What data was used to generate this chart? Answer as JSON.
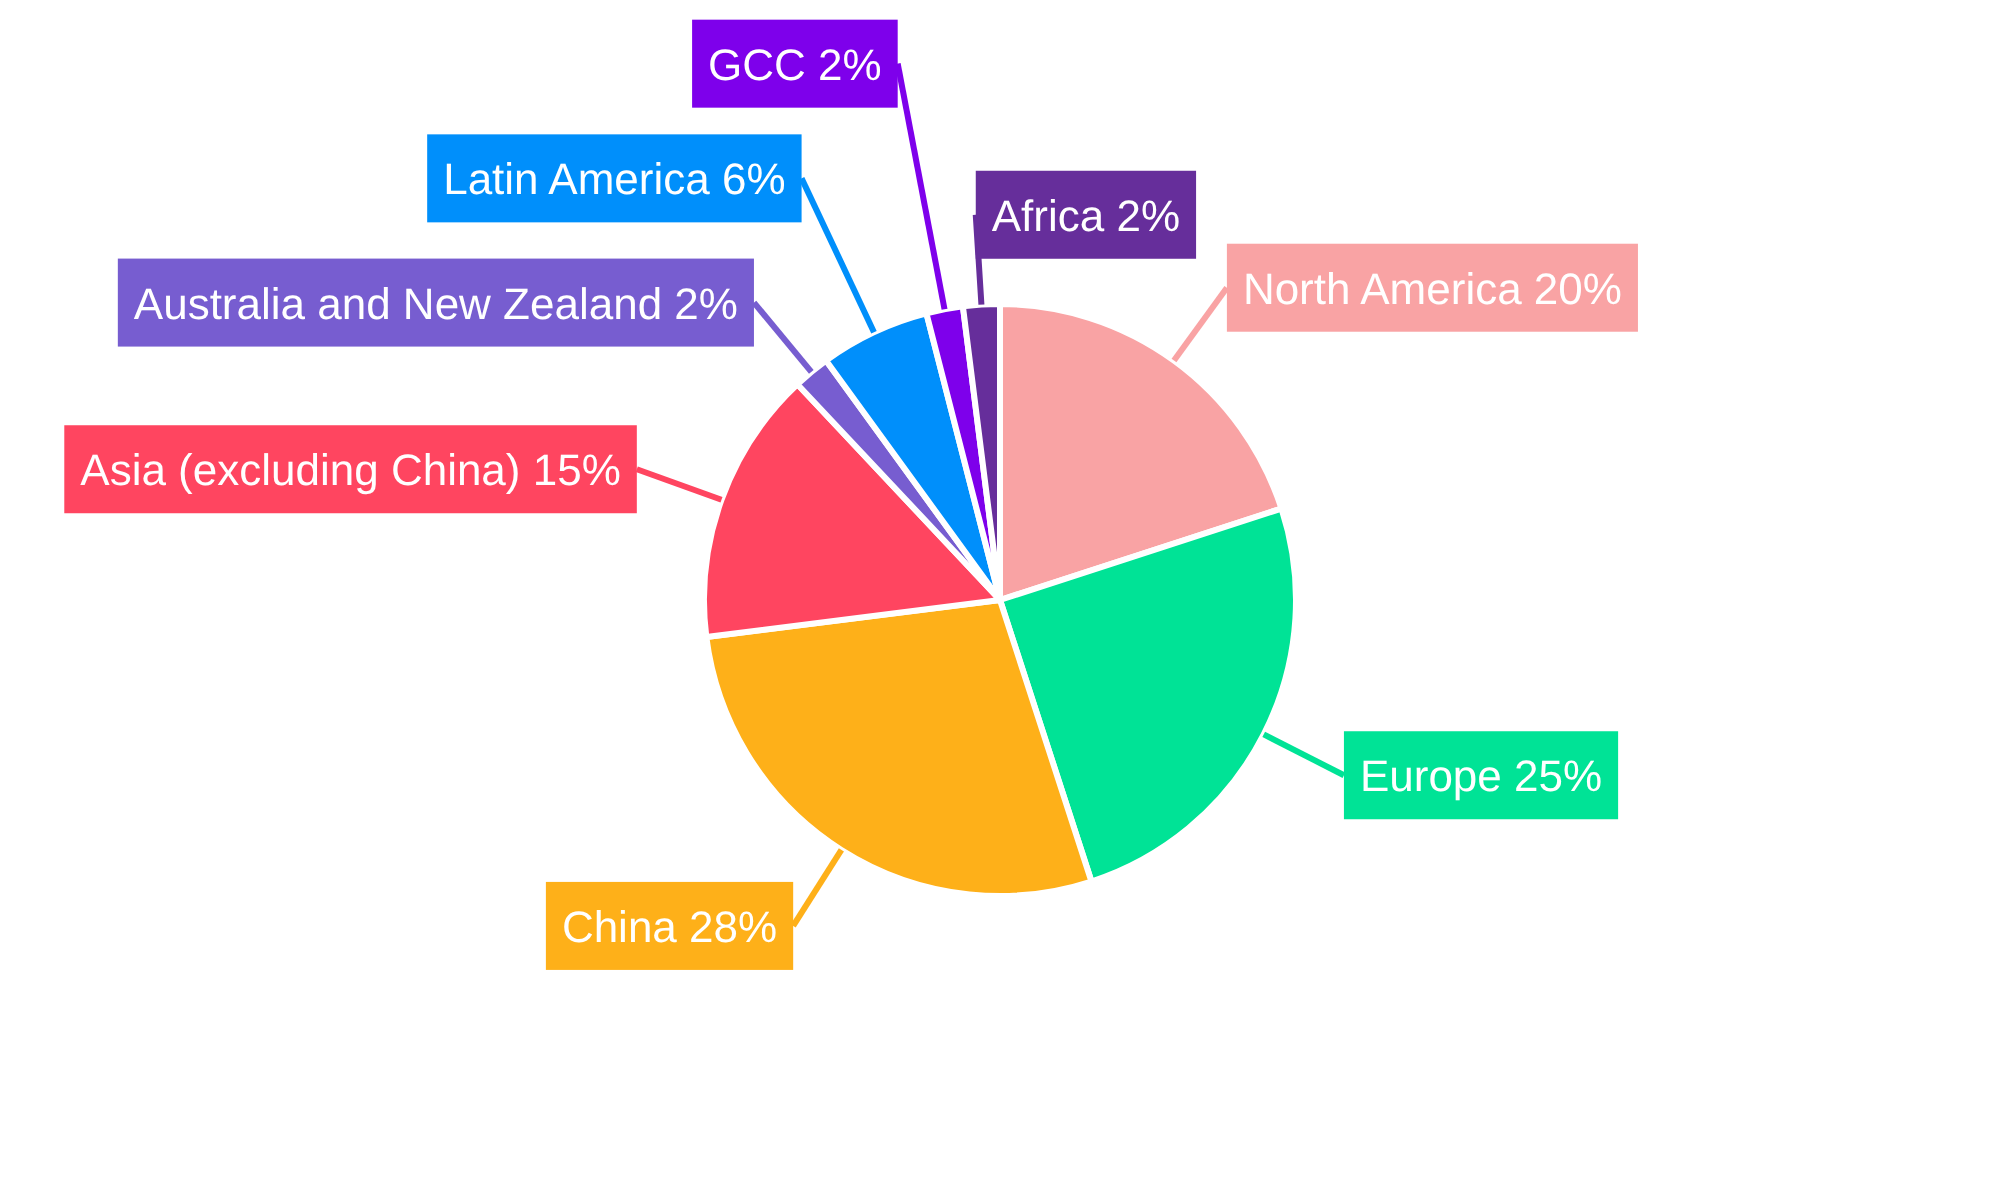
{
  "chart_data": {
    "type": "pie",
    "categories": [
      "North America",
      "Europe",
      "China",
      "Asia (excluding China)",
      "Australia and New Zealand",
      "Latin America",
      "GCC",
      "Africa"
    ],
    "values": [
      20,
      25,
      28,
      15,
      2,
      6,
      2,
      2
    ],
    "value_labels": [
      "20%",
      "25%",
      "28%",
      "15%",
      "2%",
      "6%",
      "2%",
      "2%"
    ],
    "colors": [
      "#f9a3a4",
      "#00e396",
      "#feb019",
      "#ff4560",
      "#775dd0",
      "#008ffb",
      "#7e00eb",
      "#662e9b"
    ]
  }
}
